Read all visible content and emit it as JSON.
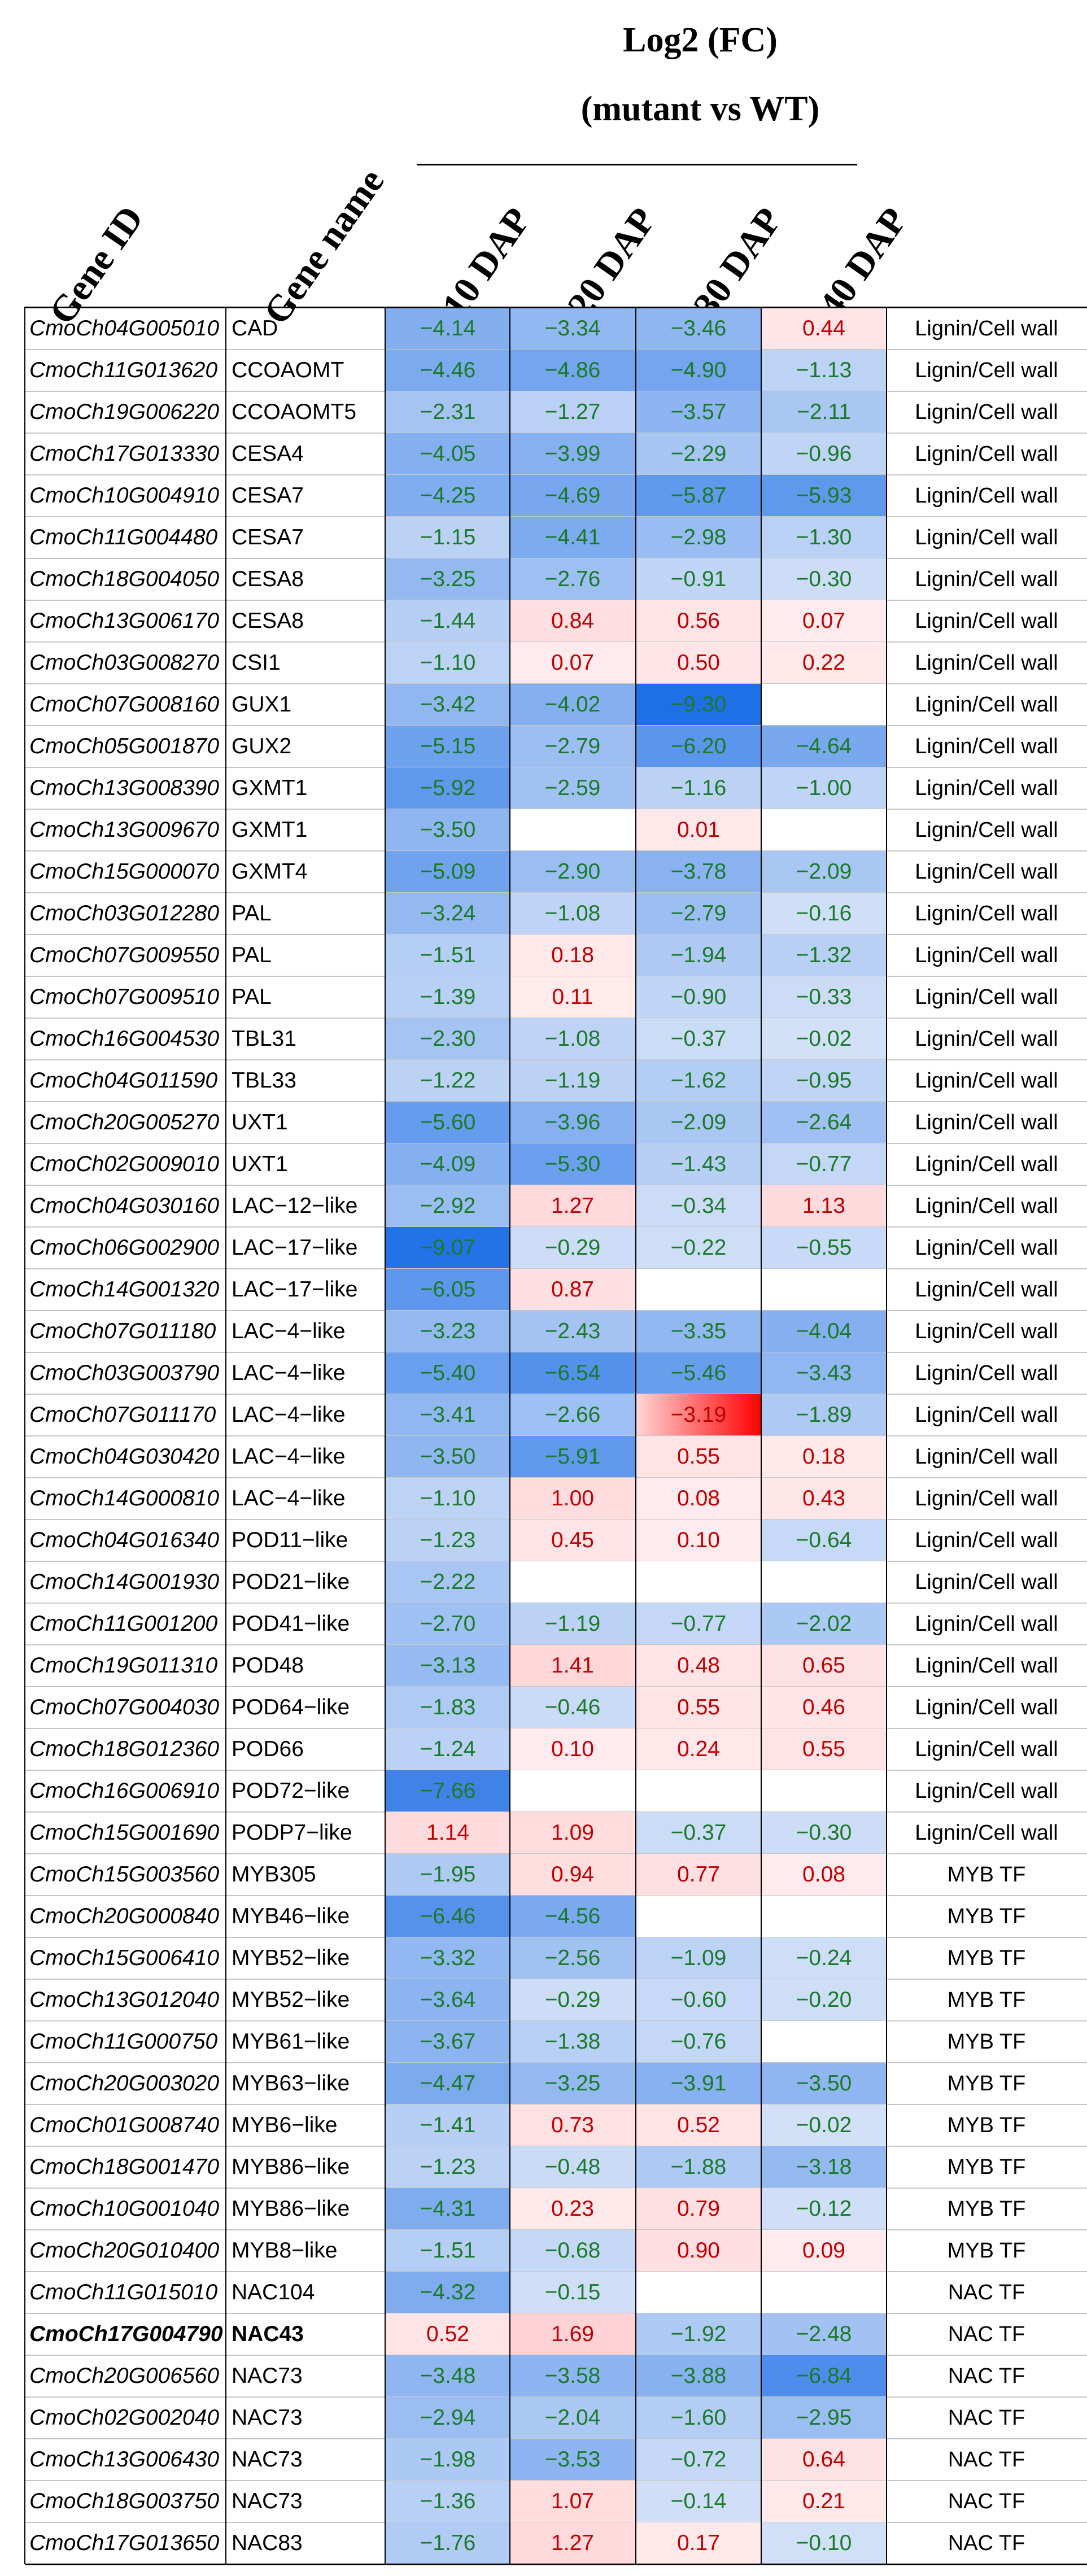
{
  "title_line1": "Log2 (FC)",
  "title_line2": "(mutant vs WT)",
  "chart_data": {
    "type": "table",
    "columns": [
      "Gene ID",
      "Gene name",
      "10 DAP",
      "20 DAP",
      "30 DAP",
      "40 DAP"
    ],
    "colorscale": {
      "negative": "#1f6fe6",
      "neutral": "#ffffff",
      "positive": "#ff0000"
    },
    "rows": [
      {
        "id": "CmoCh04G005010",
        "name": "CAD",
        "v": [
          -4.14,
          -3.34,
          -3.46,
          0.44
        ],
        "cat": "Lignin/Cell wall"
      },
      {
        "id": "CmoCh11G013620",
        "name": "CCOAOMT",
        "v": [
          -4.46,
          -4.86,
          -4.9,
          -1.13
        ],
        "cat": "Lignin/Cell wall"
      },
      {
        "id": "CmoCh19G006220",
        "name": "CCOAOMT5",
        "v": [
          -2.31,
          -1.27,
          -3.57,
          -2.11
        ],
        "cat": "Lignin/Cell wall"
      },
      {
        "id": "CmoCh17G013330",
        "name": "CESA4",
        "v": [
          -4.05,
          -3.99,
          -2.29,
          -0.96
        ],
        "cat": "Lignin/Cell wall"
      },
      {
        "id": "CmoCh10G004910",
        "name": "CESA7",
        "v": [
          -4.25,
          -4.69,
          -5.87,
          -5.93
        ],
        "cat": "Lignin/Cell wall"
      },
      {
        "id": "CmoCh11G004480",
        "name": "CESA7",
        "v": [
          -1.15,
          -4.41,
          -2.98,
          -1.3
        ],
        "cat": "Lignin/Cell wall"
      },
      {
        "id": "CmoCh18G004050",
        "name": "CESA8",
        "v": [
          -3.25,
          -2.76,
          -0.91,
          -0.3
        ],
        "cat": "Lignin/Cell wall"
      },
      {
        "id": "CmoCh13G006170",
        "name": "CESA8",
        "v": [
          -1.44,
          0.84,
          0.56,
          0.07
        ],
        "cat": "Lignin/Cell wall"
      },
      {
        "id": "CmoCh03G008270",
        "name": "CSI1",
        "v": [
          -1.1,
          0.07,
          0.5,
          0.22
        ],
        "cat": "Lignin/Cell wall"
      },
      {
        "id": "CmoCh07G008160",
        "name": "GUX1",
        "v": [
          -3.42,
          -4.02,
          -9.3,
          null
        ],
        "cat": "Lignin/Cell wall"
      },
      {
        "id": "CmoCh05G001870",
        "name": "GUX2",
        "v": [
          -5.15,
          -2.79,
          -6.2,
          -4.64
        ],
        "cat": "Lignin/Cell wall"
      },
      {
        "id": "CmoCh13G008390",
        "name": "GXMT1",
        "v": [
          -5.92,
          -2.59,
          -1.16,
          -1.0
        ],
        "cat": "Lignin/Cell wall"
      },
      {
        "id": "CmoCh13G009670",
        "name": "GXMT1",
        "v": [
          -3.5,
          null,
          0.01,
          null
        ],
        "cat": "Lignin/Cell wall"
      },
      {
        "id": "CmoCh15G000070",
        "name": "GXMT4",
        "v": [
          -5.09,
          -2.9,
          -3.78,
          -2.09
        ],
        "cat": "Lignin/Cell wall"
      },
      {
        "id": "CmoCh03G012280",
        "name": "PAL",
        "v": [
          -3.24,
          -1.08,
          -2.79,
          -0.16
        ],
        "cat": "Lignin/Cell wall"
      },
      {
        "id": "CmoCh07G009550",
        "name": "PAL",
        "v": [
          -1.51,
          0.18,
          -1.94,
          -1.32
        ],
        "cat": "Lignin/Cell wall"
      },
      {
        "id": "CmoCh07G009510",
        "name": "PAL",
        "v": [
          -1.39,
          0.11,
          -0.9,
          -0.33
        ],
        "cat": "Lignin/Cell wall"
      },
      {
        "id": "CmoCh16G004530",
        "name": "TBL31",
        "v": [
          -2.3,
          -1.08,
          -0.37,
          -0.02
        ],
        "cat": "Lignin/Cell wall"
      },
      {
        "id": "CmoCh04G011590",
        "name": "TBL33",
        "v": [
          -1.22,
          -1.19,
          -1.62,
          -0.95
        ],
        "cat": "Lignin/Cell wall"
      },
      {
        "id": "CmoCh20G005270",
        "name": "UXT1",
        "v": [
          -5.6,
          -3.96,
          -2.09,
          -2.64
        ],
        "cat": "Lignin/Cell wall"
      },
      {
        "id": "CmoCh02G009010",
        "name": "UXT1",
        "v": [
          -4.09,
          -5.3,
          -1.43,
          -0.77
        ],
        "cat": "Lignin/Cell wall"
      },
      {
        "id": "CmoCh04G030160",
        "name": "LAC−12−like",
        "v": [
          -2.92,
          1.27,
          -0.34,
          1.13
        ],
        "cat": "Lignin/Cell wall"
      },
      {
        "id": "CmoCh06G002900",
        "name": "LAC−17−like",
        "v": [
          -9.07,
          -0.29,
          -0.22,
          -0.55
        ],
        "cat": "Lignin/Cell wall"
      },
      {
        "id": "CmoCh14G001320",
        "name": "LAC−17−like",
        "v": [
          -6.05,
          0.87,
          null,
          null
        ],
        "cat": "Lignin/Cell wall"
      },
      {
        "id": "CmoCh07G011180",
        "name": "LAC−4−like",
        "v": [
          -3.23,
          -2.43,
          -3.35,
          -4.04
        ],
        "cat": "Lignin/Cell wall"
      },
      {
        "id": "CmoCh03G003790",
        "name": "LAC−4−like",
        "v": [
          -5.4,
          -6.54,
          -5.46,
          -3.43
        ],
        "cat": "Lignin/Cell wall"
      },
      {
        "id": "CmoCh07G011170",
        "name": "LAC−4−like",
        "v": [
          -3.41,
          -2.66,
          -3.19,
          -1.89
        ],
        "cat": "Lignin/Cell wall",
        "special": [
          2
        ]
      },
      {
        "id": "CmoCh04G030420",
        "name": "LAC−4−like",
        "v": [
          -3.5,
          -5.91,
          0.55,
          0.18
        ],
        "cat": "Lignin/Cell wall"
      },
      {
        "id": "CmoCh14G000810",
        "name": "LAC−4−like",
        "v": [
          -1.1,
          1.0,
          0.08,
          0.43
        ],
        "cat": "Lignin/Cell wall"
      },
      {
        "id": "CmoCh04G016340",
        "name": "POD11−like",
        "v": [
          -1.23,
          0.45,
          0.1,
          -0.64
        ],
        "cat": "Lignin/Cell wall"
      },
      {
        "id": "CmoCh14G001930",
        "name": "POD21−like",
        "v": [
          -2.22,
          null,
          null,
          null
        ],
        "cat": "Lignin/Cell wall"
      },
      {
        "id": "CmoCh11G001200",
        "name": "POD41−like",
        "v": [
          -2.7,
          -1.19,
          -0.77,
          -2.02
        ],
        "cat": "Lignin/Cell wall"
      },
      {
        "id": "CmoCh19G011310",
        "name": "POD48",
        "v": [
          -3.13,
          1.41,
          0.48,
          0.65
        ],
        "cat": "Lignin/Cell wall"
      },
      {
        "id": "CmoCh07G004030",
        "name": "POD64−like",
        "v": [
          -1.83,
          -0.46,
          0.55,
          0.46
        ],
        "cat": "Lignin/Cell wall"
      },
      {
        "id": "CmoCh18G012360",
        "name": "POD66",
        "v": [
          -1.24,
          0.1,
          0.24,
          0.55
        ],
        "cat": "Lignin/Cell wall"
      },
      {
        "id": "CmoCh16G006910",
        "name": "POD72−like",
        "v": [
          -7.66,
          null,
          null,
          null
        ],
        "cat": "Lignin/Cell wall"
      },
      {
        "id": "CmoCh15G001690",
        "name": "PODP7−like",
        "v": [
          1.14,
          1.09,
          -0.37,
          -0.3
        ],
        "cat": "Lignin/Cell wall"
      },
      {
        "id": "CmoCh15G003560",
        "name": "MYB305",
        "v": [
          -1.95,
          0.94,
          0.77,
          0.08
        ],
        "cat": "MYB TF"
      },
      {
        "id": "CmoCh20G000840",
        "name": "MYB46−like",
        "v": [
          -6.46,
          -4.56,
          null,
          null
        ],
        "cat": "MYB TF"
      },
      {
        "id": "CmoCh15G006410",
        "name": "MYB52−like",
        "v": [
          -3.32,
          -2.56,
          -1.09,
          -0.24
        ],
        "cat": "MYB TF"
      },
      {
        "id": "CmoCh13G012040",
        "name": "MYB52−like",
        "v": [
          -3.64,
          -0.29,
          -0.6,
          -0.2
        ],
        "cat": "MYB TF"
      },
      {
        "id": "CmoCh11G000750",
        "name": "MYB61−like",
        "v": [
          -3.67,
          -1.38,
          -0.76,
          null
        ],
        "cat": "MYB TF"
      },
      {
        "id": "CmoCh20G003020",
        "name": "MYB63−like",
        "v": [
          -4.47,
          -3.25,
          -3.91,
          -3.5
        ],
        "cat": "MYB TF"
      },
      {
        "id": "CmoCh01G008740",
        "name": "MYB6−like",
        "v": [
          -1.41,
          0.73,
          0.52,
          -0.02
        ],
        "cat": "MYB TF"
      },
      {
        "id": "CmoCh18G001470",
        "name": "MYB86−like",
        "v": [
          -1.23,
          -0.48,
          -1.88,
          -3.18
        ],
        "cat": "MYB TF"
      },
      {
        "id": "CmoCh10G001040",
        "name": "MYB86−like",
        "v": [
          -4.31,
          0.23,
          0.79,
          -0.12
        ],
        "cat": "MYB TF"
      },
      {
        "id": "CmoCh20G010400",
        "name": "MYB8−like",
        "v": [
          -1.51,
          -0.68,
          0.9,
          0.09
        ],
        "cat": "MYB TF"
      },
      {
        "id": "CmoCh11G015010",
        "name": "NAC104",
        "v": [
          -4.32,
          -0.15,
          null,
          null
        ],
        "cat": "NAC TF"
      },
      {
        "id": "CmoCh17G004790",
        "name": "NAC43",
        "v": [
          0.52,
          1.69,
          -1.92,
          -2.48
        ],
        "cat": "NAC TF",
        "bold": true
      },
      {
        "id": "CmoCh20G006560",
        "name": "NAC73",
        "v": [
          -3.48,
          -3.58,
          -3.88,
          -6.84
        ],
        "cat": "NAC TF"
      },
      {
        "id": "CmoCh02G002040",
        "name": "NAC73",
        "v": [
          -2.94,
          -2.04,
          -1.6,
          -2.95
        ],
        "cat": "NAC TF"
      },
      {
        "id": "CmoCh13G006430",
        "name": "NAC73",
        "v": [
          -1.98,
          -3.53,
          -0.72,
          0.64
        ],
        "cat": "NAC TF"
      },
      {
        "id": "CmoCh18G003750",
        "name": "NAC73",
        "v": [
          -1.36,
          1.07,
          -0.14,
          0.21
        ],
        "cat": "NAC TF"
      },
      {
        "id": "CmoCh17G013650",
        "name": "NAC83",
        "v": [
          -1.76,
          1.27,
          0.17,
          -0.1
        ],
        "cat": "NAC TF"
      }
    ]
  }
}
